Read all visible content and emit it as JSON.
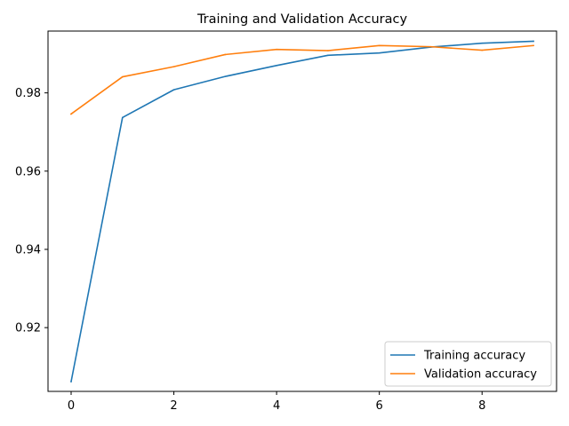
{
  "chart_data": {
    "type": "line",
    "title": "Training and Validation Accuracy",
    "xlabel": "",
    "ylabel": "",
    "x": [
      0,
      1,
      2,
      3,
      4,
      5,
      6,
      7,
      8,
      9
    ],
    "xlim": [
      -0.45,
      9.45
    ],
    "ylim": [
      0.9037,
      0.9958
    ],
    "xticks": [
      0,
      2,
      4,
      6,
      8
    ],
    "yticks": [
      0.92,
      0.94,
      0.96,
      0.98
    ],
    "ytick_labels": [
      "0.92",
      "0.94",
      "0.96",
      "0.98"
    ],
    "xtick_labels": [
      "0",
      "2",
      "4",
      "6",
      "8"
    ],
    "grid": false,
    "legend_position": "lower-right",
    "series": [
      {
        "name": "Training accuracy",
        "color": "#1f77b4",
        "values": [
          0.9062,
          0.9737,
          0.9808,
          0.9842,
          0.987,
          0.9896,
          0.9902,
          0.9917,
          0.9927,
          0.9932
        ]
      },
      {
        "name": "Validation accuracy",
        "color": "#ff7f0e",
        "values": [
          0.9746,
          0.9841,
          0.9867,
          0.9898,
          0.9911,
          0.9908,
          0.9921,
          0.9918,
          0.9909,
          0.9921
        ]
      }
    ]
  }
}
